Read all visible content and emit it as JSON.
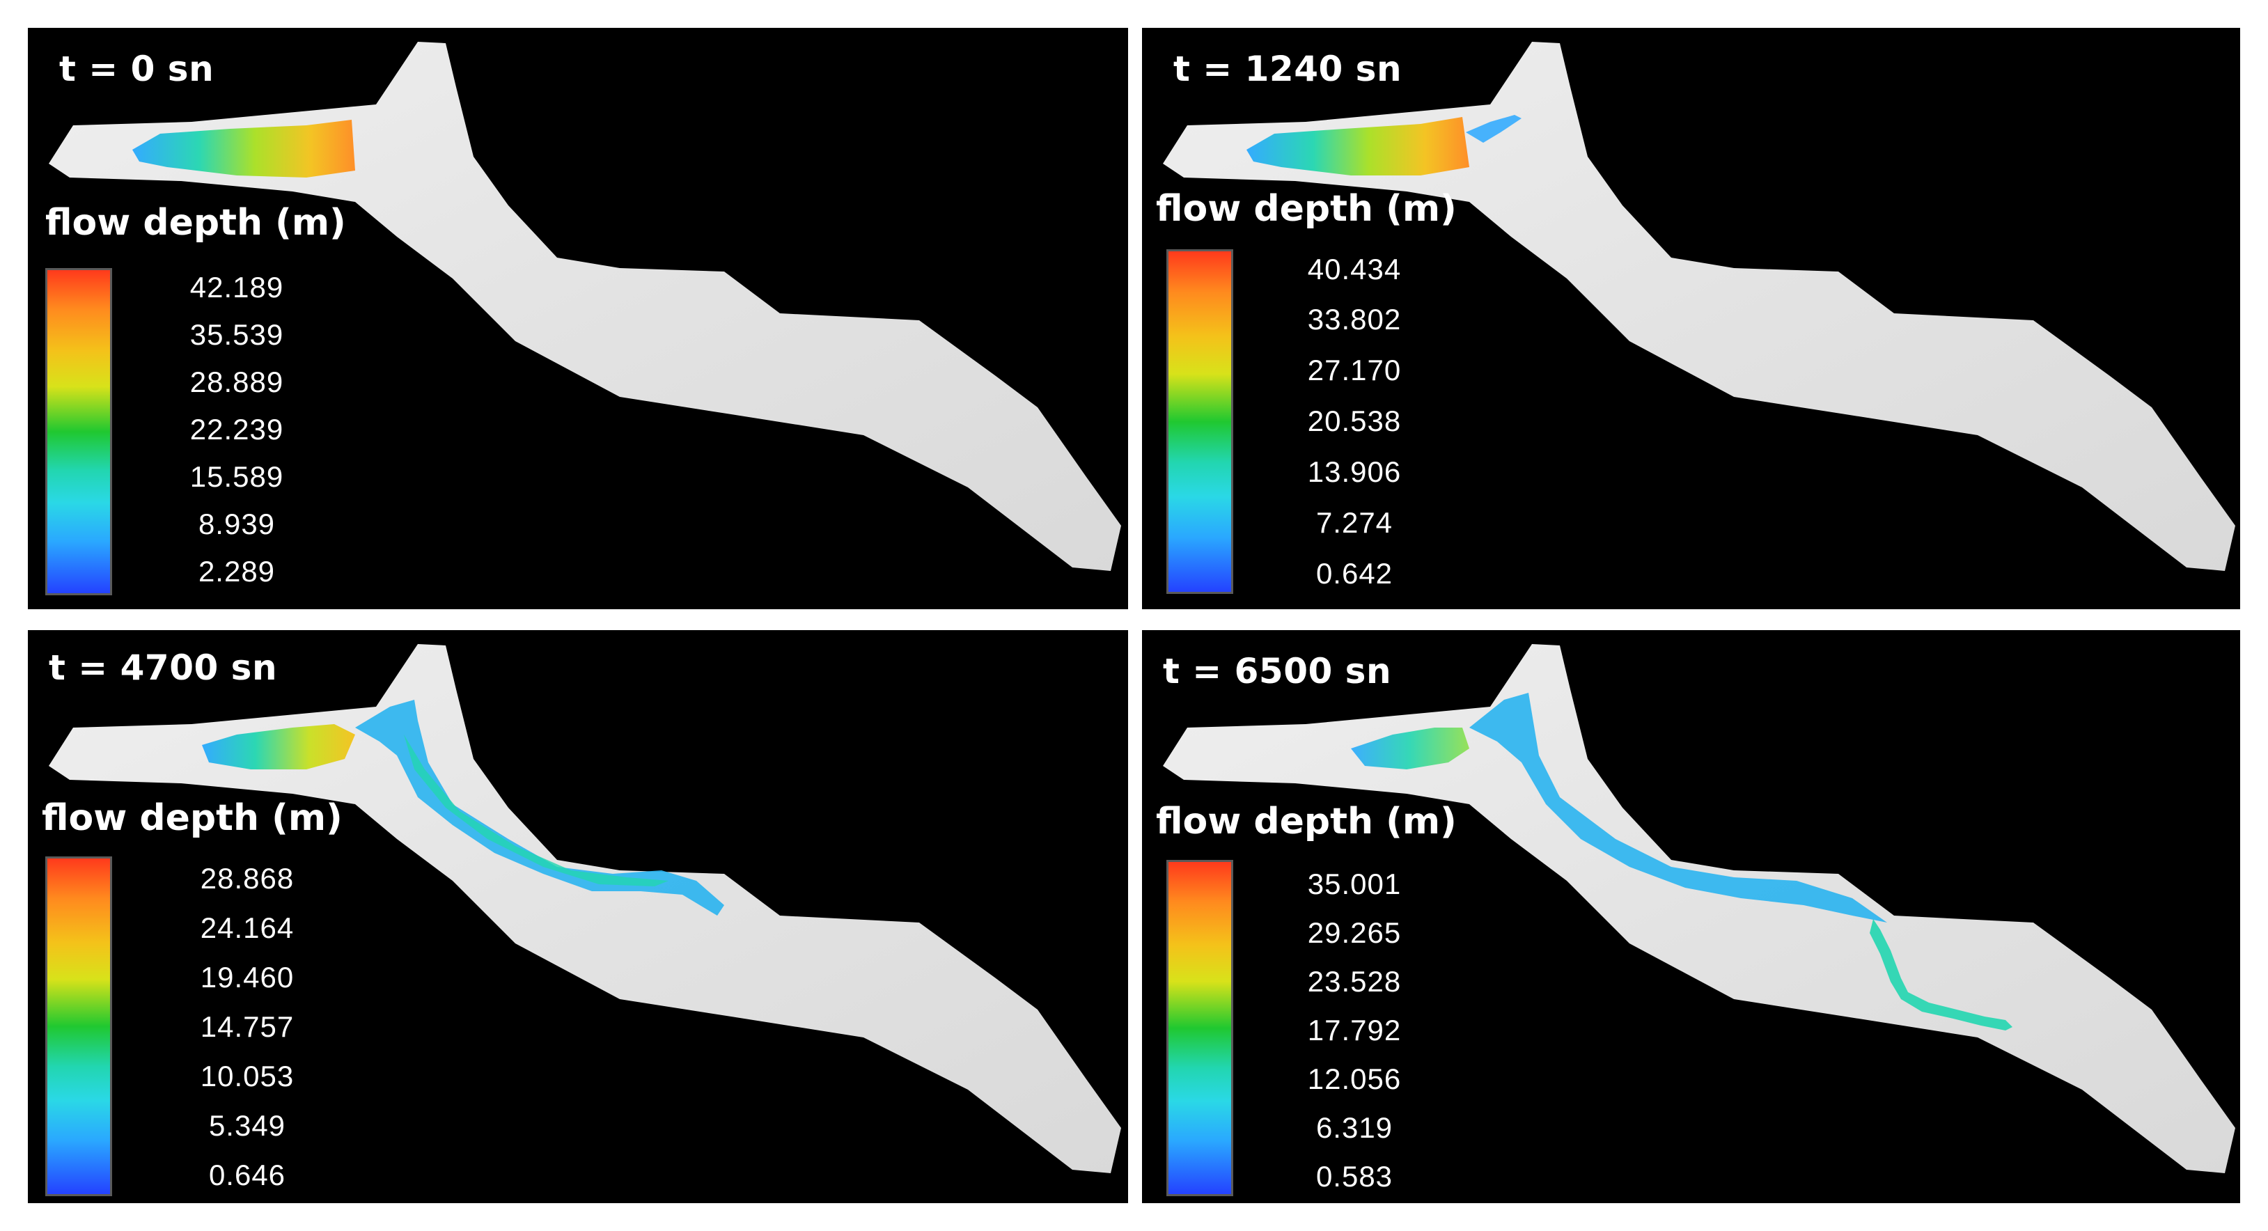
{
  "panels": [
    {
      "time": "t = 0 sn",
      "legend_title": "flow depth (m)",
      "ticks": [
        "42.189",
        "35.539",
        "28.889",
        "22.239",
        "15.589",
        "8.939",
        "2.289"
      ],
      "flow_extent": "reservoir"
    },
    {
      "time": "t = 1240 sn",
      "legend_title": "flow depth (m)",
      "ticks": [
        "40.434",
        "33.802",
        "27.170",
        "20.538",
        "13.906",
        "7.274",
        "0.642"
      ],
      "flow_extent": "breach-start"
    },
    {
      "time": "t = 4700 sn",
      "legend_title": "flow depth (m)",
      "ticks": [
        "28.868",
        "24.164",
        "19.460",
        "14.757",
        "10.053",
        "5.349",
        "0.646"
      ],
      "flow_extent": "mid-valley"
    },
    {
      "time": "t = 6500 sn",
      "legend_title": "flow depth (m)",
      "ticks": [
        "35.001",
        "29.265",
        "23.528",
        "17.792",
        "12.056",
        "6.319",
        "0.583"
      ],
      "flow_extent": "far-valley"
    }
  ],
  "colors": {
    "background": "#000000",
    "terrain": "#e6e6e6",
    "colormap": [
      "#ff3a1c",
      "#f4c21a",
      "#20c830",
      "#2ad8e6",
      "#2442ff"
    ]
  }
}
